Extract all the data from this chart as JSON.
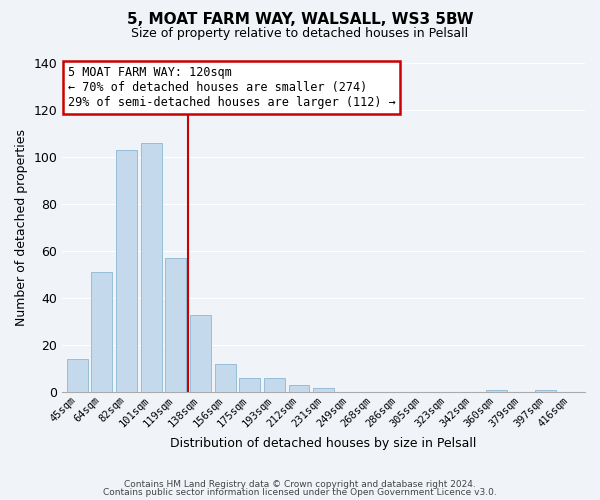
{
  "title1": "5, MOAT FARM WAY, WALSALL, WS3 5BW",
  "title2": "Size of property relative to detached houses in Pelsall",
  "xlabel": "Distribution of detached houses by size in Pelsall",
  "ylabel": "Number of detached properties",
  "bar_labels": [
    "45sqm",
    "64sqm",
    "82sqm",
    "101sqm",
    "119sqm",
    "138sqm",
    "156sqm",
    "175sqm",
    "193sqm",
    "212sqm",
    "231sqm",
    "249sqm",
    "268sqm",
    "286sqm",
    "305sqm",
    "323sqm",
    "342sqm",
    "360sqm",
    "379sqm",
    "397sqm",
    "416sqm"
  ],
  "bar_values": [
    14,
    51,
    103,
    106,
    57,
    33,
    12,
    6,
    6,
    3,
    2,
    0,
    0,
    0,
    0,
    0,
    0,
    1,
    0,
    1,
    0
  ],
  "bar_color": "#c5d9ed",
  "bar_edge_color": "#8ab8d4",
  "vline_color": "#cc0000",
  "vline_x": 4.5,
  "annotation_title": "5 MOAT FARM WAY: 120sqm",
  "annotation_line1": "← 70% of detached houses are smaller (274)",
  "annotation_line2": "29% of semi-detached houses are larger (112) →",
  "annotation_box_color": "#ffffff",
  "annotation_box_edge": "#cc0000",
  "ylim": [
    0,
    140
  ],
  "yticks": [
    0,
    20,
    40,
    60,
    80,
    100,
    120,
    140
  ],
  "footer1": "Contains HM Land Registry data © Crown copyright and database right 2024.",
  "footer2": "Contains public sector information licensed under the Open Government Licence v3.0.",
  "background_color": "#f0f4f8",
  "plot_bg_color": "#f0f4f8",
  "grid_color": "#ffffff"
}
